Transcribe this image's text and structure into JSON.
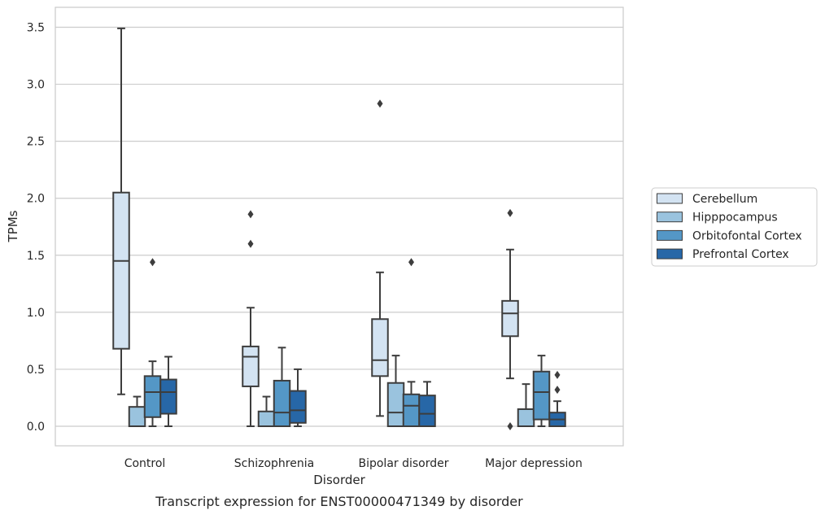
{
  "chart_data": {
    "type": "box",
    "title": "",
    "caption": "Transcript expression for ENST00000471349 by disorder",
    "xlabel": "Disorder",
    "ylabel": "TPMs",
    "categories": [
      "Control",
      "Schizophrenia",
      "Bipolar disorder",
      "Major depression"
    ],
    "ylim": [
      -0.17,
      3.67
    ],
    "yticks": [
      0.0,
      0.5,
      1.0,
      1.5,
      2.0,
      2.5,
      3.0,
      3.5
    ],
    "ytick_labels": [
      "0.0",
      "0.5",
      "1.0",
      "1.5",
      "2.0",
      "2.5",
      "3.0",
      "3.5"
    ],
    "grid": "horizontal",
    "legend_position": "right",
    "series": [
      {
        "name": "Cerebellum",
        "color": "#d3e3f2",
        "boxes": [
          {
            "whislo": 0.28,
            "q1": 0.68,
            "med": 1.45,
            "q3": 2.05,
            "whishi": 3.49,
            "fliers": []
          },
          {
            "whislo": 0.0,
            "q1": 0.35,
            "med": 0.61,
            "q3": 0.7,
            "whishi": 1.04,
            "fliers": [
              1.86,
              1.6
            ]
          },
          {
            "whislo": 0.09,
            "q1": 0.44,
            "med": 0.58,
            "q3": 0.94,
            "whishi": 1.35,
            "fliers": [
              2.83
            ]
          },
          {
            "whislo": 0.42,
            "q1": 0.79,
            "med": 0.99,
            "q3": 1.1,
            "whishi": 1.55,
            "fliers": [
              1.87,
              0.0
            ]
          }
        ]
      },
      {
        "name": "Hipppocampus",
        "color": "#9ac3de",
        "boxes": [
          {
            "whislo": 0.0,
            "q1": 0.0,
            "med": 0.0,
            "q3": 0.17,
            "whishi": 0.26,
            "fliers": []
          },
          {
            "whislo": 0.0,
            "q1": 0.0,
            "med": 0.0,
            "q3": 0.13,
            "whishi": 0.26,
            "fliers": []
          },
          {
            "whislo": 0.0,
            "q1": 0.0,
            "med": 0.12,
            "q3": 0.38,
            "whishi": 0.62,
            "fliers": []
          },
          {
            "whislo": 0.0,
            "q1": 0.0,
            "med": 0.0,
            "q3": 0.15,
            "whishi": 0.37,
            "fliers": []
          }
        ]
      },
      {
        "name": "Orbitofontal Cortex",
        "color": "#5497c6",
        "boxes": [
          {
            "whislo": 0.0,
            "q1": 0.08,
            "med": 0.3,
            "q3": 0.44,
            "whishi": 0.57,
            "fliers": [
              1.44
            ]
          },
          {
            "whislo": 0.0,
            "q1": 0.0,
            "med": 0.12,
            "q3": 0.4,
            "whishi": 0.69,
            "fliers": []
          },
          {
            "whislo": 0.0,
            "q1": 0.0,
            "med": 0.18,
            "q3": 0.28,
            "whishi": 0.39,
            "fliers": [
              1.44
            ]
          },
          {
            "whislo": 0.0,
            "q1": 0.06,
            "med": 0.3,
            "q3": 0.48,
            "whishi": 0.62,
            "fliers": []
          }
        ]
      },
      {
        "name": "Prefrontal Cortex",
        "color": "#2767a7",
        "boxes": [
          {
            "whislo": 0.0,
            "q1": 0.11,
            "med": 0.3,
            "q3": 0.41,
            "whishi": 0.61,
            "fliers": []
          },
          {
            "whislo": 0.0,
            "q1": 0.03,
            "med": 0.14,
            "q3": 0.31,
            "whishi": 0.5,
            "fliers": []
          },
          {
            "whislo": 0.0,
            "q1": 0.0,
            "med": 0.11,
            "q3": 0.27,
            "whishi": 0.39,
            "fliers": []
          },
          {
            "whislo": 0.0,
            "q1": 0.0,
            "med": 0.06,
            "q3": 0.12,
            "whishi": 0.22,
            "fliers": [
              0.45,
              0.32
            ]
          }
        ]
      }
    ]
  }
}
